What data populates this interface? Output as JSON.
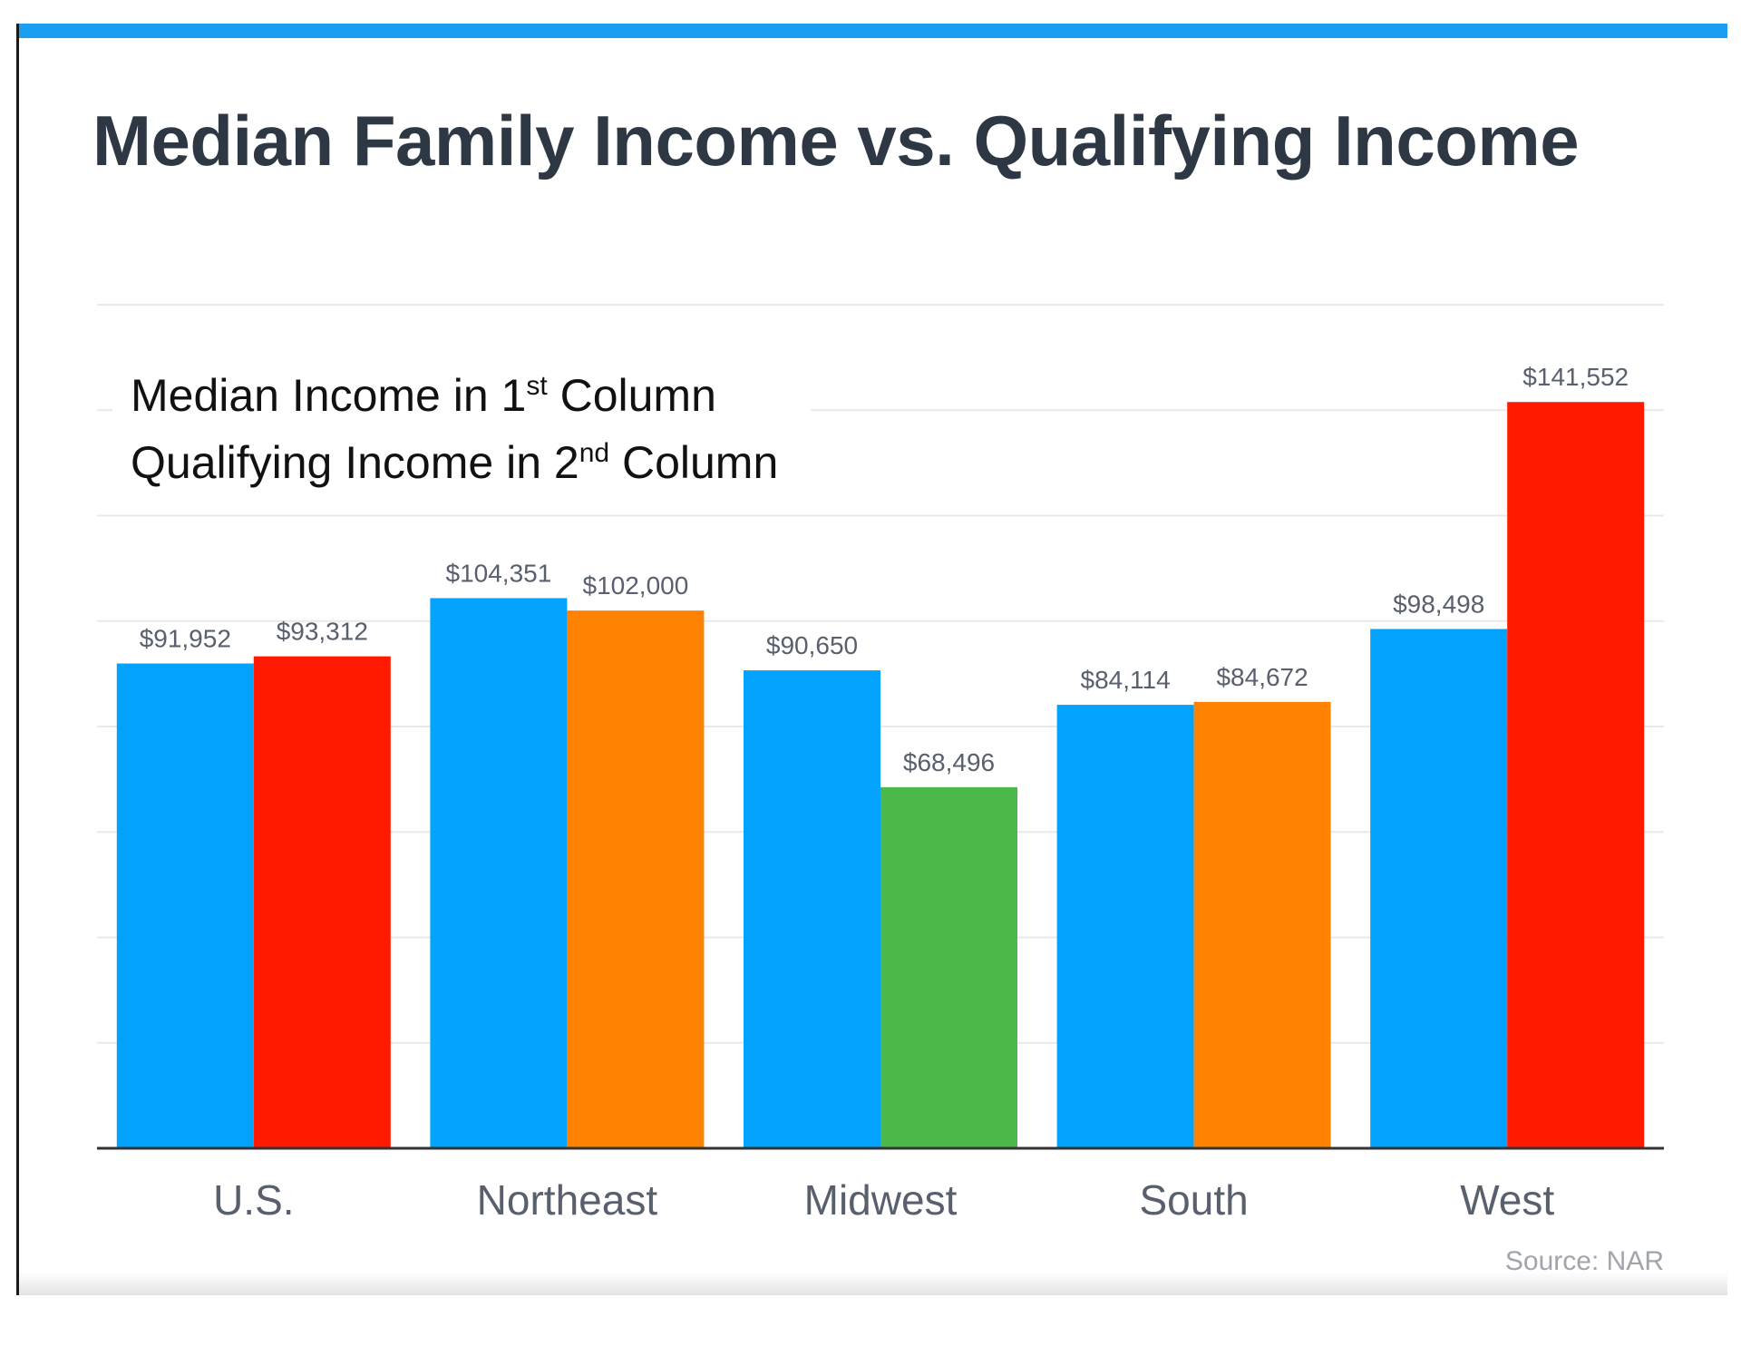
{
  "title": "Median Family Income vs. Qualifying Income",
  "legend_note": {
    "line1_pre": "Median Income in 1",
    "line1_sup": "st",
    "line1_post": " Column",
    "line2_pre": "Qualifying Income in 2",
    "line2_sup": "nd",
    "line2_post": " Column"
  },
  "source": "Source: NAR",
  "colors": {
    "median": "#03a2fd",
    "red": "#ff1a00",
    "orange": "#ff8200",
    "green": "#4db84a",
    "grid": "#e9e9e9",
    "axis": "#333333",
    "label": "#58606e",
    "accent_bar": "#1a9ef2"
  },
  "chart_data": {
    "type": "bar",
    "title": "Median Family Income vs. Qualifying Income",
    "xlabel": "",
    "ylabel": "",
    "categories": [
      "U.S.",
      "Northeast",
      "Midwest",
      "South",
      "West"
    ],
    "ylim": [
      0,
      160000
    ],
    "grid": true,
    "series": [
      {
        "values": [
          91952,
          104351,
          90650,
          84114,
          98498
        ],
        "labels": [
          "$91,952",
          "$104,351",
          "$90,650",
          "$84,114",
          "$98,498"
        ],
        "colors": [
          "#03a2fd",
          "#03a2fd",
          "#03a2fd",
          "#03a2fd",
          "#03a2fd"
        ]
      },
      {
        "values": [
          93312,
          102000,
          68496,
          84672,
          141552
        ],
        "labels": [
          "$93,312",
          "$102,000",
          "$68,496",
          "$84,672",
          "$141,552"
        ],
        "colors": [
          "#ff1a00",
          "#ff8200",
          "#4db84a",
          "#ff8200",
          "#ff1a00"
        ]
      }
    ]
  }
}
